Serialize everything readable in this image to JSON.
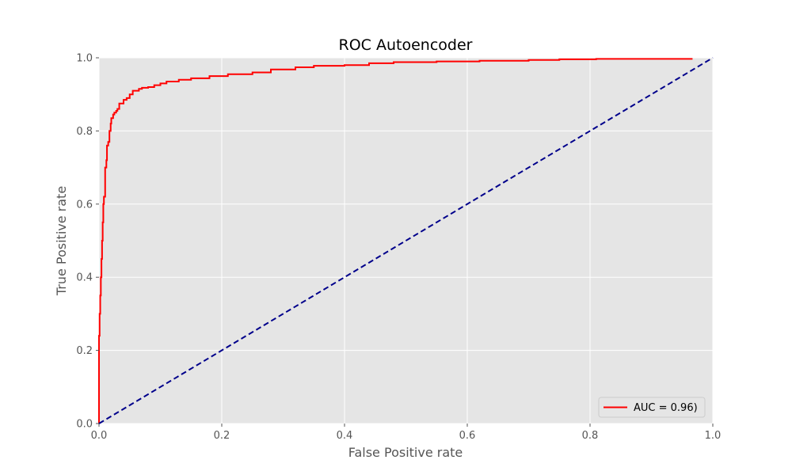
{
  "chart_data": {
    "type": "line",
    "title": "ROC Autoencoder",
    "xlabel": "False Positive rate",
    "ylabel": "True Positive rate",
    "xlim": [
      0,
      1
    ],
    "ylim": [
      0,
      1
    ],
    "grid": true,
    "legend_position": "lower-right",
    "x_ticks": [
      "0.0",
      "0.2",
      "0.4",
      "0.6",
      "0.8",
      "1.0"
    ],
    "y_ticks": [
      "0.0",
      "0.2",
      "0.4",
      "0.6",
      "0.8",
      "1.0"
    ],
    "series": [
      {
        "name": "AUC = 0.96)",
        "color": "#ff0000",
        "style": "solid",
        "x": [
          0.0,
          0.0,
          0.001,
          0.002,
          0.003,
          0.004,
          0.005,
          0.006,
          0.007,
          0.008,
          0.01,
          0.012,
          0.013,
          0.015,
          0.017,
          0.019,
          0.02,
          0.023,
          0.025,
          0.028,
          0.03,
          0.033,
          0.036,
          0.04,
          0.045,
          0.05,
          0.055,
          0.06,
          0.065,
          0.07,
          0.08,
          0.09,
          0.1,
          0.11,
          0.13,
          0.15,
          0.18,
          0.21,
          0.25,
          0.28,
          0.32,
          0.35,
          0.4,
          0.44,
          0.48,
          0.55,
          0.62,
          0.7,
          0.75,
          0.81,
          0.9,
          0.967
        ],
        "y": [
          0.0,
          0.17,
          0.24,
          0.3,
          0.35,
          0.4,
          0.45,
          0.5,
          0.55,
          0.6,
          0.62,
          0.7,
          0.72,
          0.76,
          0.77,
          0.8,
          0.82,
          0.835,
          0.845,
          0.85,
          0.855,
          0.86,
          0.875,
          0.875,
          0.885,
          0.89,
          0.9,
          0.91,
          0.91,
          0.915,
          0.918,
          0.92,
          0.925,
          0.93,
          0.935,
          0.94,
          0.944,
          0.95,
          0.955,
          0.96,
          0.968,
          0.974,
          0.978,
          0.98,
          0.985,
          0.988,
          0.99,
          0.992,
          0.994,
          0.996,
          0.997,
          0.997
        ]
      },
      {
        "name": "",
        "color": "#00008b",
        "style": "dashed",
        "x": [
          0,
          1
        ],
        "y": [
          0,
          1
        ]
      }
    ]
  }
}
